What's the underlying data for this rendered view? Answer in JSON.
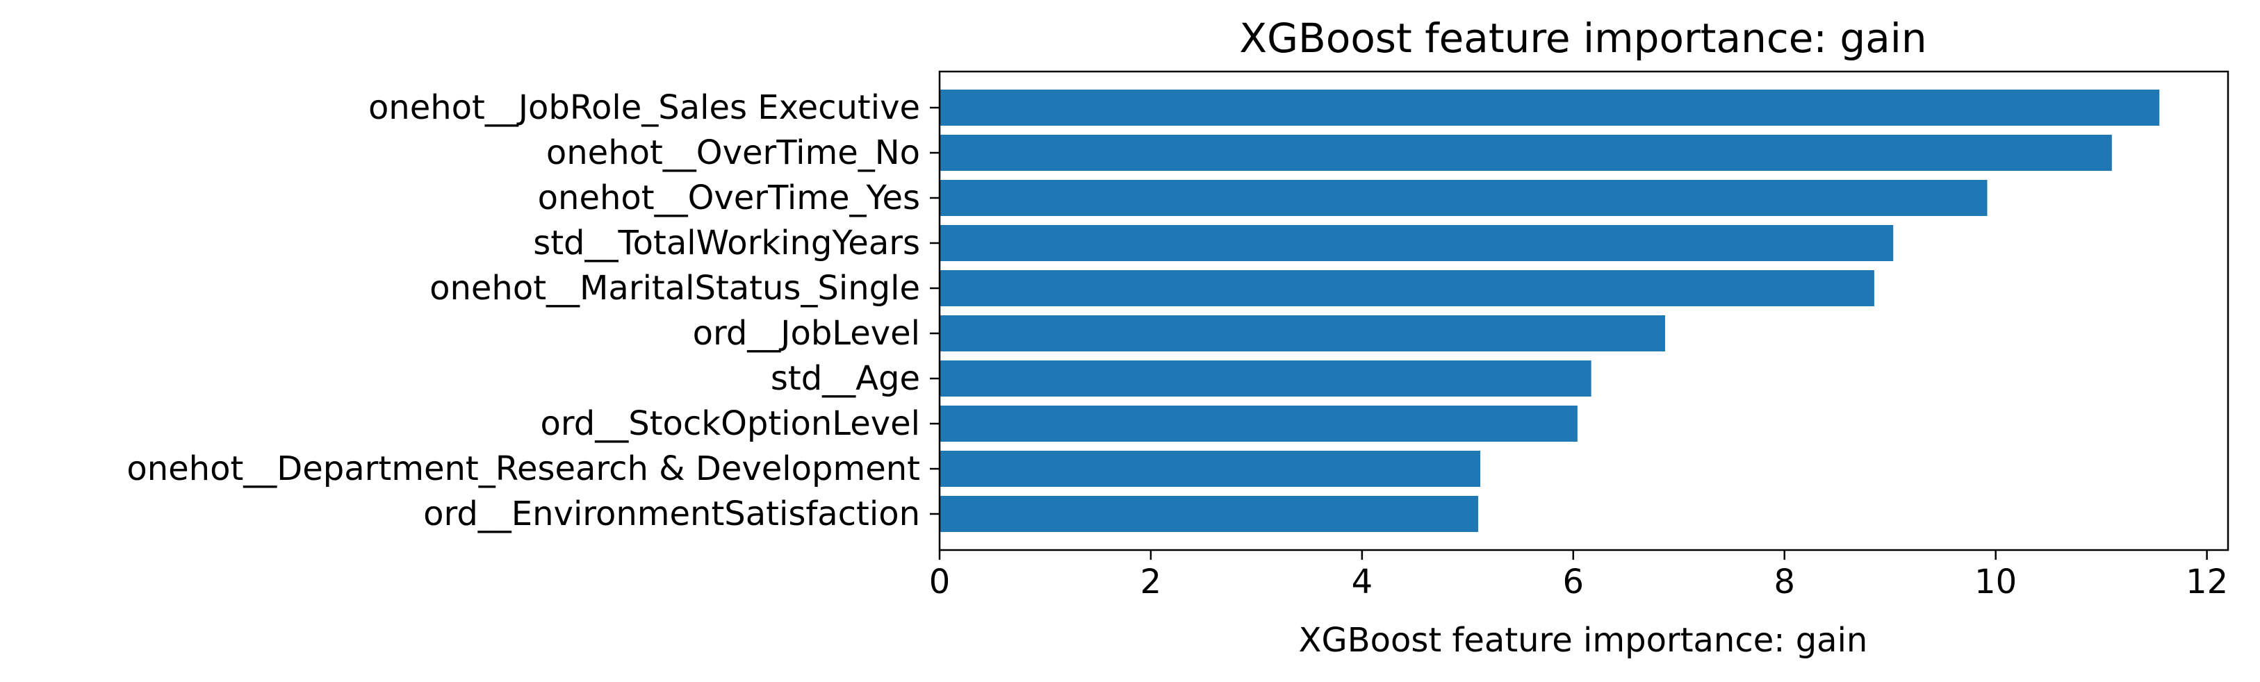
{
  "chart_data": {
    "type": "bar",
    "orientation": "horizontal",
    "title": "XGBoost feature importance: gain",
    "xlabel": "XGBoost feature importance: gain",
    "ylabel": "",
    "xlim": [
      0,
      12.2
    ],
    "xticks": [
      0,
      2,
      4,
      6,
      8,
      10,
      12
    ],
    "grid": false,
    "bar_color": "#1f77b4",
    "categories": [
      "onehot__JobRole_Sales Executive",
      "onehot__OverTime_No",
      "onehot__OverTime_Yes",
      "std__TotalWorkingYears",
      "onehot__MaritalStatus_Single",
      "ord__JobLevel",
      "std__Age",
      "ord__StockOptionLevel",
      "onehot__Department_Research & Development",
      "ord__EnvironmentSatisfaction"
    ],
    "values": [
      11.55,
      11.1,
      9.92,
      9.03,
      8.85,
      6.87,
      6.17,
      6.04,
      5.12,
      5.1
    ]
  }
}
